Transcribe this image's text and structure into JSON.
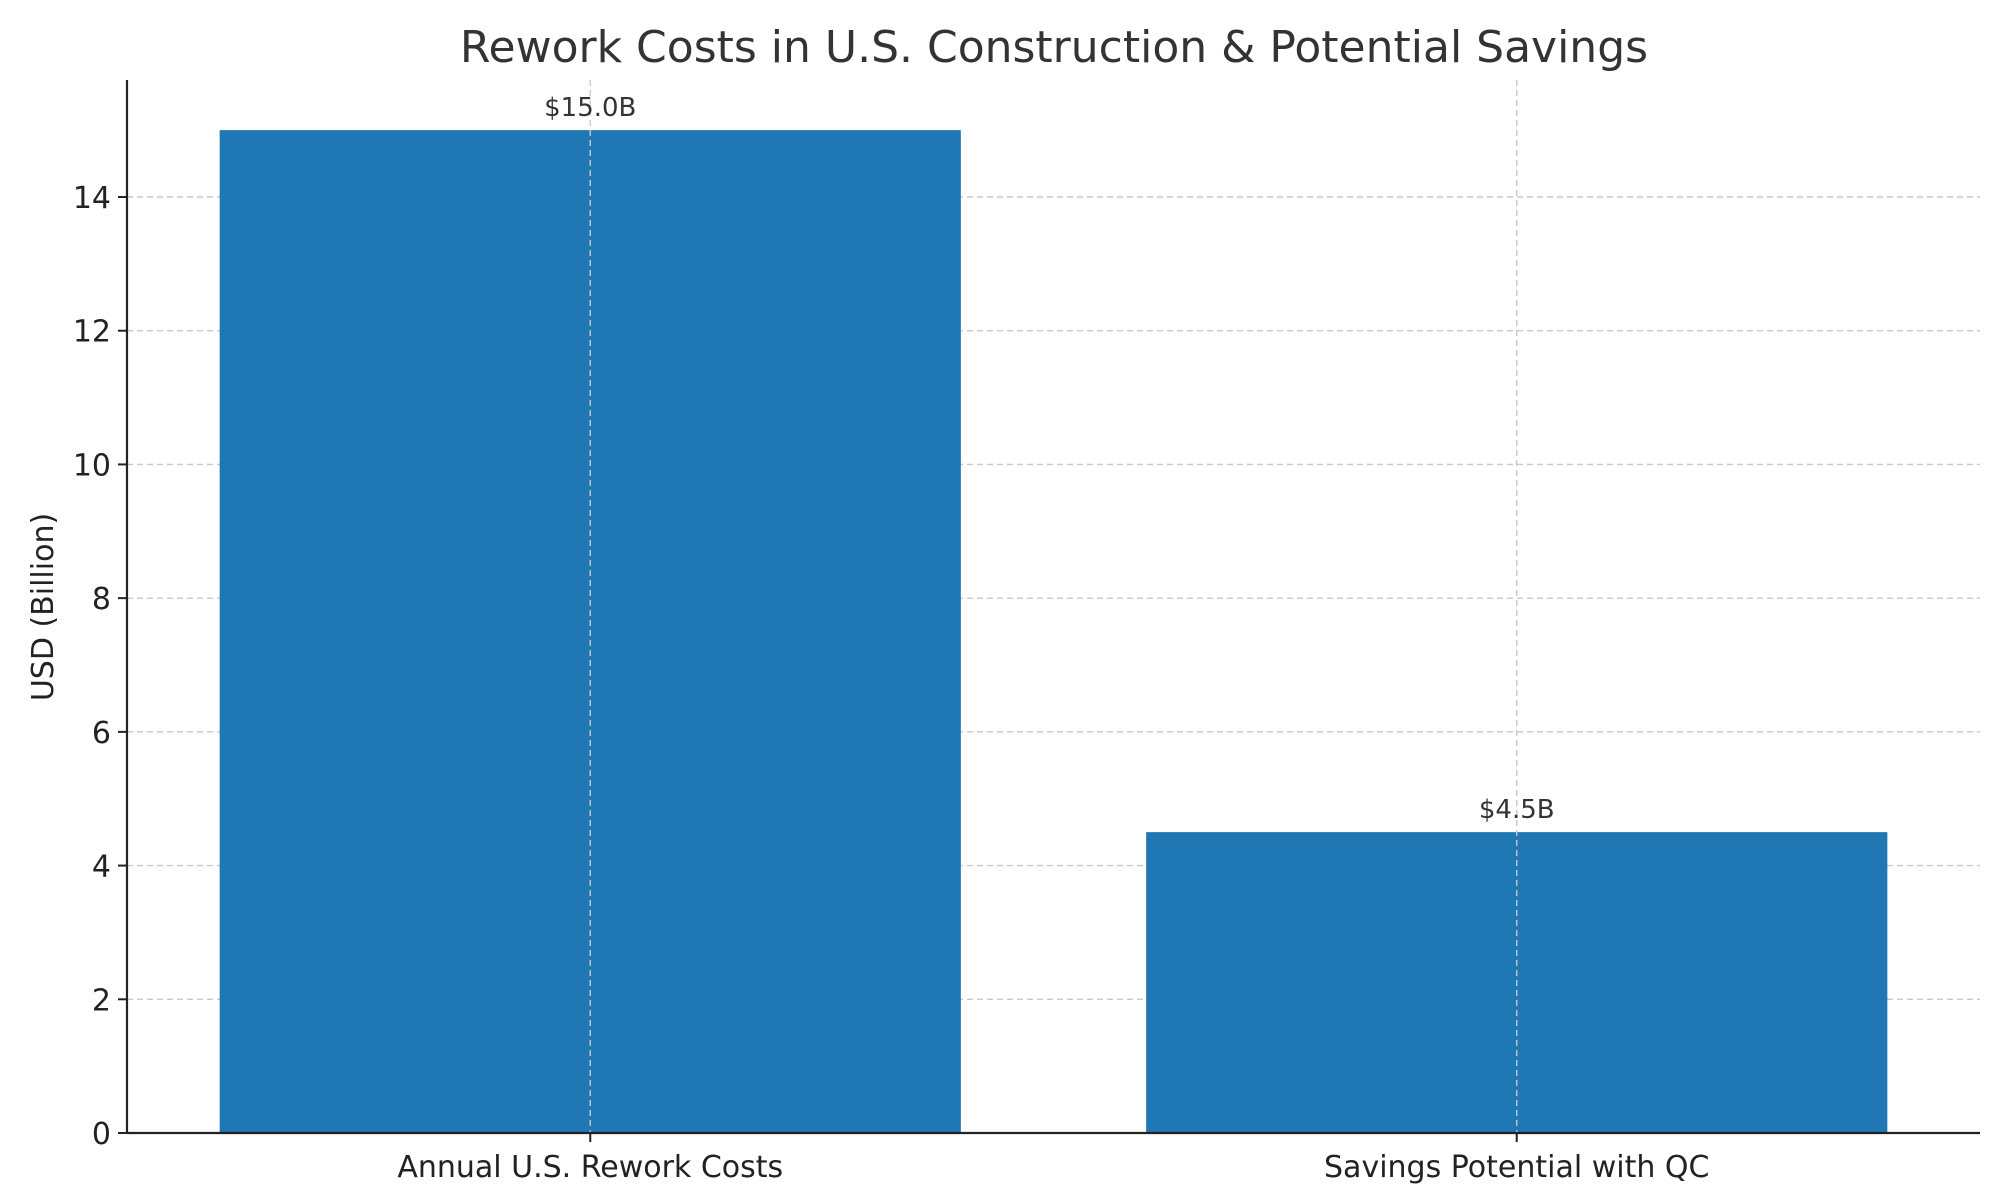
{
  "chart_data": {
    "type": "bar",
    "title": "Rework Costs in U.S. Construction & Potential Savings",
    "xlabel": "",
    "ylabel": "USD (Billion)",
    "categories": [
      "Annual U.S. Rework Costs",
      "Savings Potential with QC"
    ],
    "values": [
      15.0,
      4.5
    ],
    "data_labels": [
      "$15.0B",
      "$4.5B"
    ],
    "ylim": [
      0,
      15.75
    ],
    "yticks": [
      0,
      2,
      4,
      6,
      8,
      10,
      12,
      14
    ],
    "grid": true,
    "legend": "none",
    "bar_color": "#1f77b4"
  }
}
